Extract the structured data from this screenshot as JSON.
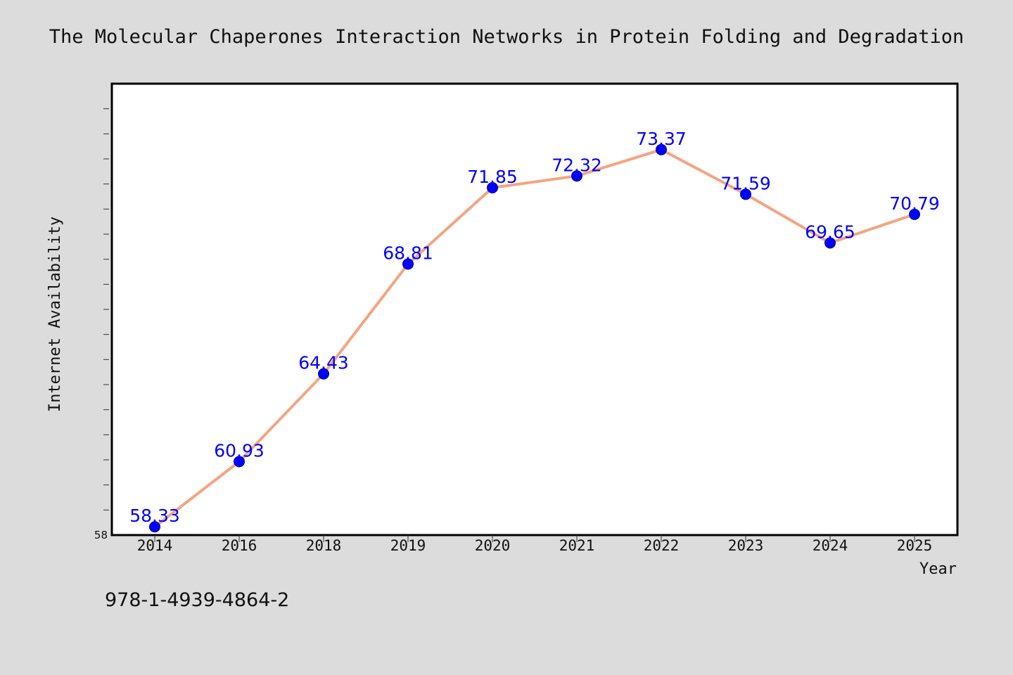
{
  "colors": {
    "background": "#dcdcdc",
    "plot_area": "#ffffff",
    "line": "#f4a582",
    "marker": "#0000ff",
    "data_label": "#0000ff",
    "text": "#111111"
  },
  "isbn": "978-1-4939-4864-2",
  "chart_data": {
    "type": "line",
    "title": "The Molecular Chaperones Interaction Networks in Protein Folding and Degradation",
    "xlabel": "Year",
    "ylabel": "Internet Availability",
    "categories": [
      "2014",
      "2016",
      "2018",
      "2019",
      "2020",
      "2021",
      "2022",
      "2023",
      "2024",
      "2025"
    ],
    "series": [
      {
        "values": [
          58.33,
          60.93,
          64.43,
          68.81,
          71.85,
          72.32,
          73.37,
          71.59,
          69.65,
          70.79
        ],
        "data_labels": [
          "58.33",
          "60.93",
          "64.43",
          "68.81",
          "71.85",
          "72.32",
          "73.37",
          "71.59",
          "69.65",
          "70.79"
        ]
      }
    ],
    "ylim": [
      58,
      76
    ],
    "y_tick_labels": [
      "58"
    ],
    "grid": false,
    "legend": "none"
  }
}
